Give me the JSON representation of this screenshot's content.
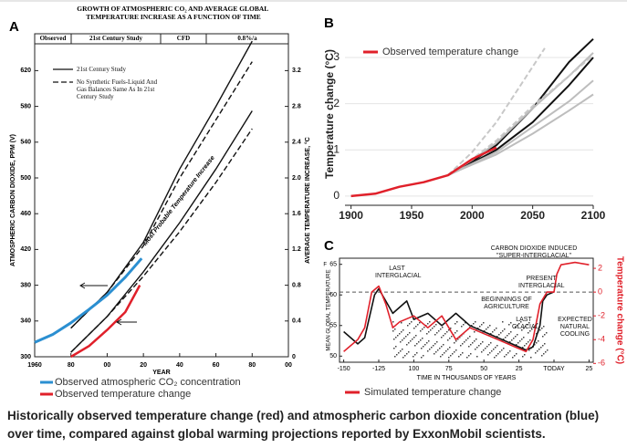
{
  "chart_data": [
    {
      "type": "line",
      "panel": "A",
      "title": "GROWTH OF ATMOSPHERIC CO₂ AND AVERAGE GLOBAL TEMPERATURE INCREASE AS A FUNCTION OF TIME",
      "header_bands": [
        "Observed",
        "21st Century Study",
        "CFD",
        "0.8%/a"
      ],
      "x_label": "YEAR",
      "y_label": "ATMOSPHERIC CARBON DIOXIDE, PPM (V)",
      "y2_label": "AVERAGE TEMPERATURE INCREASE, °C",
      "annotation": "Most Probable Temperature Increase",
      "xlim": [
        1960,
        2100
      ],
      "xticks": [
        1960,
        {
          "value": 1980,
          "label": "80"
        },
        {
          "value": 2000,
          "label": "00"
        },
        {
          "value": 2020,
          "label": "20"
        },
        {
          "value": 2040,
          "label": "40"
        },
        {
          "value": 2060,
          "label": "60"
        },
        {
          "value": 2080,
          "label": "80"
        },
        {
          "value": 2100,
          "label": "00"
        }
      ],
      "ylim": [
        300,
        650
      ],
      "yticks": [
        300,
        340,
        380,
        420,
        460,
        500,
        540,
        580,
        620
      ],
      "y2lim": [
        0,
        3.5
      ],
      "y2ticks": [
        0,
        0.4,
        0.8,
        1.2,
        1.6,
        {
          "value": 2,
          "label": "2.0"
        },
        2.4,
        2.8,
        3.2
      ],
      "series": [
        {
          "name": "21st Century Study",
          "color": "#111111",
          "dash": false,
          "x": [
            1980,
            2000,
            2020,
            2040,
            2060,
            2080
          ],
          "values": [
            332,
            372,
            428,
            510,
            580,
            653
          ]
        },
        {
          "name": "No Synthetic Fuels-Liquid And Gas Balances Same As In 21st Century Study",
          "color": "#111111",
          "dash": true,
          "x": [
            1980,
            2000,
            2020,
            2040,
            2060,
            2080
          ],
          "values": [
            332,
            372,
            424,
            500,
            565,
            630
          ]
        },
        {
          "color": "#111111",
          "dash": false,
          "axis": "y2",
          "x": [
            1980,
            2000,
            2020,
            2040,
            2060,
            2080
          ],
          "values": [
            0.05,
            0.45,
            0.95,
            1.5,
            2.1,
            2.75
          ]
        },
        {
          "color": "#111111",
          "dash": true,
          "axis": "y2",
          "x": [
            1980,
            2000,
            2020,
            2040,
            2060,
            2080
          ],
          "values": [
            0.05,
            0.45,
            0.9,
            1.4,
            1.95,
            2.55
          ]
        },
        {
          "name": "Observed atmospheric CO₂ concentration",
          "color": "#2b8fd1",
          "dash": false,
          "width": 3,
          "x": [
            1960,
            1970,
            1980,
            1990,
            2000,
            2010,
            2019
          ],
          "values": [
            316,
            325,
            338,
            353,
            369,
            389,
            410
          ]
        },
        {
          "name": "Observed temperature change",
          "color": "#e0202a",
          "dash": false,
          "width": 2.5,
          "axis": "y2",
          "x": [
            1980,
            1990,
            2000,
            2010,
            2018
          ],
          "values": [
            0,
            0.12,
            0.3,
            0.5,
            0.8
          ]
        }
      ]
    },
    {
      "type": "line",
      "panel": "B",
      "y_label": "Temperature change (°C)",
      "xlim": [
        1895,
        2100
      ],
      "xticks": [
        1900,
        1950,
        2000,
        2050,
        2100
      ],
      "ylim": [
        -0.2,
        3.75
      ],
      "yticks": [
        0,
        1,
        2,
        3
      ],
      "series": [
        {
          "name": "Observed temperature change",
          "color": "#e0202a",
          "x": [
            1900,
            1920,
            1940,
            1960,
            1980,
            2000,
            2020
          ],
          "values": [
            0,
            0.05,
            0.2,
            0.3,
            0.45,
            0.8,
            1.05
          ]
        }
      ],
      "projections": [
        {
          "color": "#111111",
          "dash": false,
          "x": [
            1980,
            2000,
            2020,
            2050,
            2080,
            2100
          ],
          "values": [
            0.45,
            0.75,
            1.1,
            1.9,
            2.9,
            3.4
          ]
        },
        {
          "color": "#111111",
          "dash": false,
          "x": [
            1980,
            2000,
            2020,
            2050,
            2080,
            2100
          ],
          "values": [
            0.45,
            0.72,
            1.0,
            1.6,
            2.4,
            3.0
          ]
        },
        {
          "color": "#bdbdbd",
          "dash": false,
          "x": [
            1980,
            2000,
            2020,
            2050,
            2080,
            2100
          ],
          "values": [
            0.45,
            0.78,
            1.15,
            1.9,
            2.6,
            3.1
          ]
        },
        {
          "color": "#bdbdbd",
          "dash": false,
          "x": [
            1980,
            2000,
            2020,
            2050,
            2080,
            2100
          ],
          "values": [
            0.45,
            0.7,
            0.95,
            1.5,
            2.05,
            2.5
          ]
        },
        {
          "color": "#bdbdbd",
          "dash": false,
          "x": [
            1980,
            2000,
            2020,
            2050,
            2080,
            2100
          ],
          "values": [
            0.45,
            0.68,
            0.9,
            1.35,
            1.85,
            2.2
          ]
        },
        {
          "color": "#c8c8c8",
          "dash": true,
          "x": [
            1980,
            2000,
            2020,
            2040,
            2060
          ],
          "values": [
            0.45,
            0.95,
            1.6,
            2.4,
            3.2
          ]
        },
        {
          "color": "#c8c8c8",
          "dash": true,
          "x": [
            1980,
            2000,
            2020,
            2050,
            2080,
            2100
          ],
          "values": [
            0.45,
            0.8,
            1.2,
            1.95,
            2.6,
            3.05
          ]
        }
      ]
    },
    {
      "type": "line",
      "panel": "C",
      "x_label": "TIME IN THOUSANDS OF YEARS",
      "y_label": "MEAN GLOBAL TEMPERATURE",
      "y_unit": "F",
      "y2_label": "Temperature change (°C)",
      "annotations": [
        "LAST INTERGLACIAL",
        "CARBON DIOXIDE INDUCED \"SUPER-INTERGLACIAL\"",
        "PRESENT INTERGLACIAL",
        "BEGINNINGS OF AGRICULTURE",
        "LAST GLACIAL",
        "EXPECTED NATURAL COOLING"
      ],
      "xlim": [
        -153,
        28
      ],
      "xticks": [
        -150,
        -125,
        {
          "value": -100,
          "label": "100"
        },
        {
          "value": -75,
          "label": "75"
        },
        {
          "value": -50,
          "label": "50"
        },
        {
          "value": -25,
          "label": "25"
        },
        {
          "value": 0,
          "label": "TODAY"
        },
        25
      ],
      "ylim": [
        49,
        66
      ],
      "yticks": [
        50,
        55,
        60,
        65
      ],
      "y2lim": [
        -5.9,
        2.85
      ],
      "y2ticks": [
        2,
        0,
        -2,
        -4,
        -6
      ],
      "series": [
        {
          "color": "#111111",
          "x": [
            -150,
            -140,
            -135,
            -128,
            -125,
            -120,
            -115,
            -105,
            -100,
            -90,
            -80,
            -70,
            -60,
            -50,
            -40,
            -30,
            -20,
            -15,
            -10,
            -8,
            -5,
            0
          ],
          "values": [
            54,
            52,
            53,
            60,
            61,
            59,
            57,
            59,
            56,
            57,
            55,
            57,
            55,
            54,
            53,
            52,
            51,
            51.5,
            55,
            59,
            60,
            60.5
          ]
        },
        {
          "name": "Simulated temperature change",
          "color": "#e0202a",
          "axis": "y2",
          "x": [
            -150,
            -140,
            -135,
            -130,
            -125,
            -120,
            -115,
            -110,
            -100,
            -90,
            -80,
            -70,
            -60,
            -50,
            -40,
            -30,
            -20,
            -15,
            -10,
            -5,
            0,
            2,
            5,
            15,
            25
          ],
          "values": [
            -5,
            -4,
            -3,
            0,
            0.5,
            -1,
            -3,
            -2.5,
            -2,
            -3,
            -2,
            -4,
            -3,
            -3.5,
            -4,
            -4.5,
            -5,
            -4,
            -1,
            0,
            0,
            1.5,
            2.3,
            2.5,
            2.3
          ]
        }
      ]
    }
  ],
  "caption": "Historically observed temperature change (red) and atmospheric carbon dioxide concentration (blue) over time, compared against global warming projections reported by ExxonMobil scientists."
}
